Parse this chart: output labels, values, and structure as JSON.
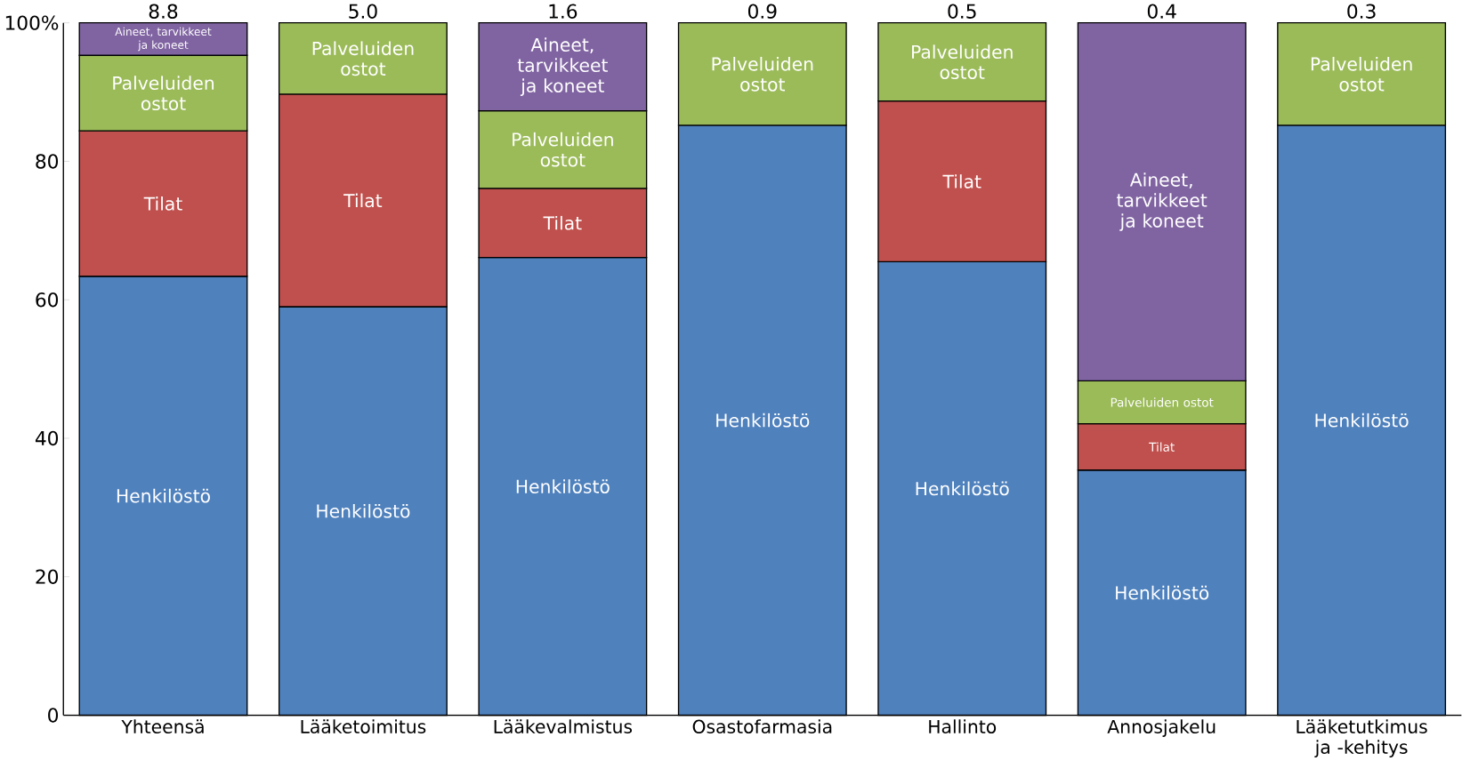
{
  "chart_data": {
    "type": "bar",
    "stacked": true,
    "categories": [
      "Yhteensä",
      "Lääketoimitus",
      "Lääkevalmistus",
      "Osastofarmasia",
      "Hallinto",
      "Annosjakelu",
      "Lääketutkimus ja -kehitys"
    ],
    "series": [
      {
        "name": "Henkilöstö",
        "color": "#4f81bd",
        "values": [
          63.4,
          59.0,
          66.1,
          85.2,
          65.5,
          35.4,
          85.2
        ]
      },
      {
        "name": "Tilat",
        "color": "#c0504d",
        "values": [
          21.0,
          30.7,
          10.0,
          0,
          23.2,
          6.7,
          0
        ]
      },
      {
        "name": "Palveluiden ostot",
        "color": "#9bbb59",
        "values": [
          10.9,
          10.3,
          11.2,
          14.8,
          11.3,
          6.2,
          14.8
        ]
      },
      {
        "name": "Aineet, tarvikkeet ja koneet",
        "color": "#8064a2",
        "values": [
          4.7,
          0,
          12.7,
          0,
          0,
          51.7,
          0
        ]
      }
    ],
    "annotations": [
      {
        "text": "8.8",
        "x": "Yhteensä",
        "y": 100
      },
      {
        "text": "5.0",
        "x": "Lääketoimitus",
        "y": 100
      },
      {
        "text": "1.6",
        "x": "Lääkevalmistus",
        "y": 100
      },
      {
        "text": "0.9",
        "x": "Osastofarmasia",
        "y": 100
      },
      {
        "text": "0.5",
        "x": "Hallinto",
        "y": 100
      },
      {
        "text": "0.4",
        "x": "Annosjakelu",
        "y": 100
      },
      {
        "text": "0.3",
        "x": "Lääketutkimus ja -kehitys",
        "y": 100
      }
    ],
    "ylim": [
      0,
      100
    ],
    "yticks": [
      0,
      20,
      40,
      60,
      80,
      {
        "value": 100,
        "label": "100%"
      }
    ],
    "legend": false
  }
}
